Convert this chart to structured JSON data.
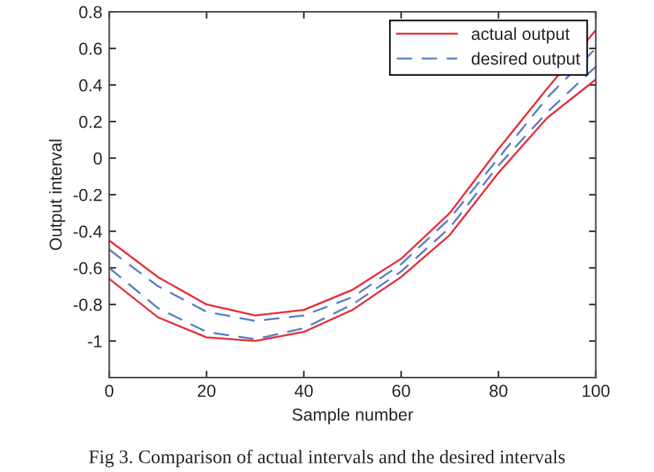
{
  "chart_data": {
    "type": "line",
    "xlabel": "Sample number",
    "ylabel": "Output interval",
    "x": [
      0,
      10,
      20,
      30,
      40,
      50,
      60,
      70,
      80,
      90,
      100
    ],
    "series": [
      {
        "name": "actual output",
        "color": "#e8303a",
        "line_style": "solid",
        "values": [
          -0.45,
          -0.65,
          -0.8,
          -0.86,
          -0.83,
          -0.72,
          -0.55,
          -0.3,
          0.05,
          0.38,
          0.7
        ]
      },
      {
        "name": "desired output",
        "color": "#5b7fbf",
        "line_style": "dashed",
        "values": [
          -0.5,
          -0.7,
          -0.84,
          -0.89,
          -0.86,
          -0.76,
          -0.58,
          -0.33,
          0.0,
          0.33,
          0.6
        ]
      },
      {
        "color": "#5b7fbf",
        "line_style": "dashed",
        "values": [
          -0.6,
          -0.82,
          -0.95,
          -0.99,
          -0.93,
          -0.8,
          -0.62,
          -0.38,
          -0.04,
          0.25,
          0.5
        ]
      },
      {
        "color": "#e8303a",
        "line_style": "solid",
        "values": [
          -0.66,
          -0.87,
          -0.98,
          -1.0,
          -0.95,
          -0.83,
          -0.65,
          -0.42,
          -0.08,
          0.22,
          0.43
        ]
      }
    ],
    "xlim": [
      0,
      100
    ],
    "xticks": [
      0,
      20,
      40,
      60,
      80,
      100
    ],
    "ylim": [
      -1.2,
      0.8
    ],
    "yticks": [
      -1,
      -0.8,
      -0.6,
      -0.4,
      -0.2,
      0,
      0.2,
      0.4,
      0.6,
      0.8
    ],
    "grid": false,
    "legend": "top right",
    "marker": "none",
    "annotations": [
      "Fig 3. Comparison of actual intervals and the desired intervals"
    ]
  }
}
